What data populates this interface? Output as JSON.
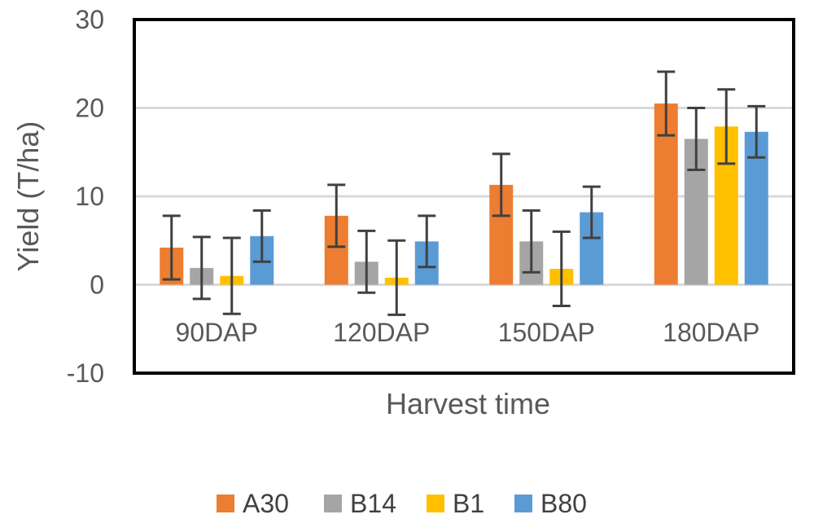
{
  "chart_data": {
    "type": "bar",
    "title": "",
    "xlabel": "Harvest time",
    "ylabel": "Yield (T/ha)",
    "ylim": [
      -10,
      30
    ],
    "yticks": [
      -10,
      0,
      10,
      20,
      30
    ],
    "grid": true,
    "legend_position": "bottom",
    "categories": [
      "90DAP",
      "120DAP",
      "150DAP",
      "180DAP"
    ],
    "series": [
      {
        "name": "A30",
        "color": "#ED7D31",
        "values": [
          4.2,
          7.8,
          11.3,
          20.5
        ],
        "errors": [
          3.6,
          3.5,
          3.5,
          3.6
        ]
      },
      {
        "name": "B14",
        "color": "#A5A5A5",
        "values": [
          1.9,
          2.6,
          4.9,
          16.5
        ],
        "errors": [
          3.5,
          3.5,
          3.5,
          3.5
        ]
      },
      {
        "name": "B1",
        "color": "#FFC000",
        "values": [
          1.0,
          0.8,
          1.8,
          17.9
        ],
        "errors": [
          4.3,
          4.2,
          4.2,
          4.2
        ]
      },
      {
        "name": "B80",
        "color": "#5B9BD5",
        "values": [
          5.5,
          4.9,
          8.2,
          17.3
        ],
        "errors": [
          2.9,
          2.9,
          2.9,
          2.9
        ]
      }
    ]
  }
}
